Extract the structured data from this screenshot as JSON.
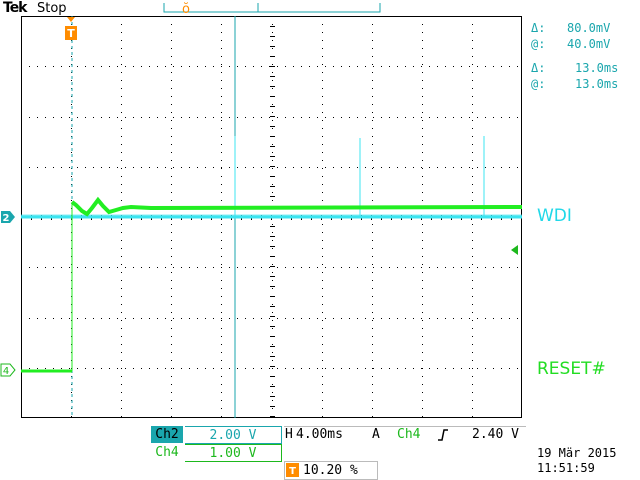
{
  "header": {
    "brand": "Tek",
    "status": "Stop"
  },
  "cursors": {
    "voltage_delta": "80.0mV",
    "voltage_at": "40.0mV",
    "time_delta": "13.0ms",
    "time_at": "13.0ms",
    "delta_symbol": "Δ:",
    "at_symbol": "@:"
  },
  "markers": {
    "trigger": "T",
    "ch2": "2",
    "ch4": "4"
  },
  "trace_labels": {
    "wdi": "WDI",
    "reset": "RESET#"
  },
  "channels": {
    "ch2": {
      "name": "Ch2",
      "scale": "2.00 V",
      "color": "#1aa6ad"
    },
    "ch4": {
      "name": "Ch4",
      "scale": "1.00 V",
      "color": "#1db81d"
    }
  },
  "horizontal": {
    "label": "H",
    "timebase": "4.00ms",
    "trigger_mode": "A",
    "trigger_source": "Ch4",
    "trigger_slope_icon": "rising-edge-icon",
    "trigger_level": "2.40 V",
    "trigger_position": "10.20 %"
  },
  "timestamp": {
    "date": "19 Mär 2015",
    "time": "11:51:59"
  },
  "colors": {
    "grid": "#000000",
    "trigger_marker": "#ff8c00",
    "ch2_trace": "#3ce4f0",
    "ch4_trace": "#22ee22"
  }
}
